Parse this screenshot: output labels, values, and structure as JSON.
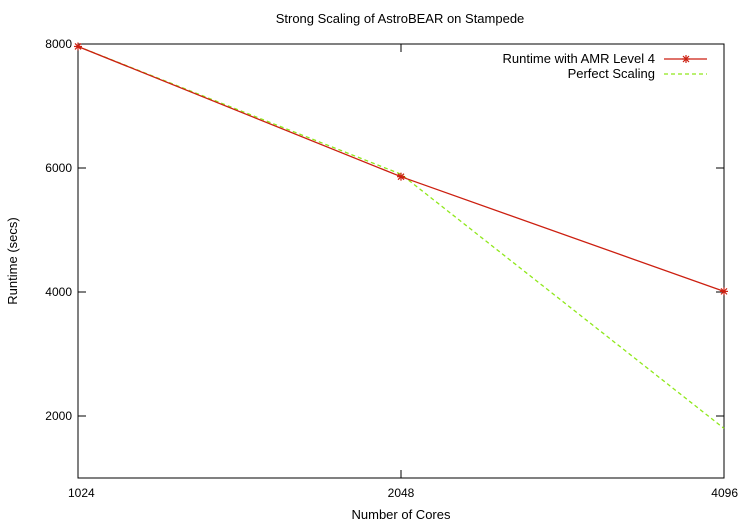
{
  "chart_data": {
    "type": "line",
    "title": "Strong Scaling of AstroBEAR on Stampede",
    "xlabel": "Number of Cores",
    "ylabel": "Runtime (secs)",
    "x": [
      1024,
      2048,
      4096
    ],
    "x_scale": "log2",
    "xlim": [
      1024,
      4096
    ],
    "ylim": [
      1000,
      8000
    ],
    "x_ticks": [
      "1024",
      "2048",
      "4096"
    ],
    "y_ticks": [
      "2000",
      "4000",
      "6000",
      "8000"
    ],
    "grid": false,
    "legend_position": "top-right",
    "series": [
      {
        "name": "Runtime with AMR Level 4",
        "values": [
          7960,
          5860,
          4010
        ],
        "color": "#cc1f10",
        "marker": "star"
      },
      {
        "name": "Perfect Scaling",
        "values": [
          7960,
          5900,
          1800
        ],
        "color": "#8fe81b",
        "style": "dashed"
      }
    ]
  }
}
